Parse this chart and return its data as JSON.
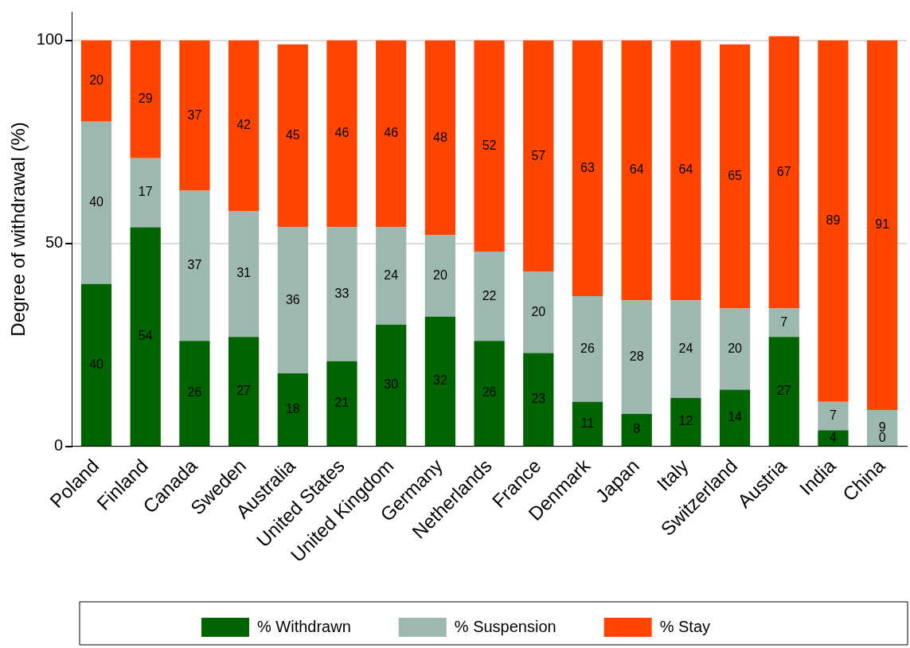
{
  "chart_data": {
    "type": "bar",
    "stacked": true,
    "ylabel": "Degree of withdrawal (%)",
    "categories": [
      "Poland",
      "Finland",
      "Canada",
      "Sweden",
      "Australia",
      "United States",
      "United Kingdom",
      "Germany",
      "Netherlands",
      "France",
      "Denmark",
      "Japan",
      "Italy",
      "Switzerland",
      "Austria",
      "India",
      "China"
    ],
    "series": [
      {
        "name": "% Withdrawn",
        "color": "#006400",
        "values": [
          40,
          54,
          26,
          27,
          18,
          21,
          30,
          32,
          26,
          23,
          11,
          8,
          12,
          14,
          27,
          4,
          0
        ],
        "value_labels": [
          "40",
          "54",
          "26",
          "27",
          "18",
          "21",
          "30",
          "32",
          "26",
          "23",
          "11",
          "8",
          "12",
          "14",
          "27",
          "4",
          null
        ]
      },
      {
        "name": "% Suspension",
        "color": "#9cb8b0",
        "values": [
          40,
          17,
          37,
          31,
          36,
          33,
          24,
          20,
          22,
          20,
          26,
          28,
          24,
          20,
          7,
          7,
          9
        ],
        "value_labels": [
          "40",
          "17",
          "37",
          "31",
          "36",
          "33",
          "24",
          "20",
          "22",
          "20",
          "26",
          "28",
          "24",
          "20",
          "7",
          "7",
          "9"
        ]
      },
      {
        "name": "% Stay",
        "color": "#ff4500",
        "values": [
          20,
          29,
          37,
          42,
          45,
          46,
          46,
          48,
          52,
          57,
          63,
          64,
          64,
          65,
          67,
          89,
          91
        ],
        "value_labels": [
          "20",
          "29",
          "37",
          "42",
          "45",
          "46",
          "46",
          "48",
          "52",
          "57",
          "63",
          "64",
          "64",
          "65",
          "67",
          "89",
          "91"
        ]
      }
    ],
    "annotations": [
      {
        "text": "0",
        "x": "China",
        "y": 0
      }
    ],
    "ylim": [
      0,
      107
    ],
    "yticks": [
      0,
      50,
      100
    ],
    "grid": "y",
    "legend": "bottom"
  }
}
